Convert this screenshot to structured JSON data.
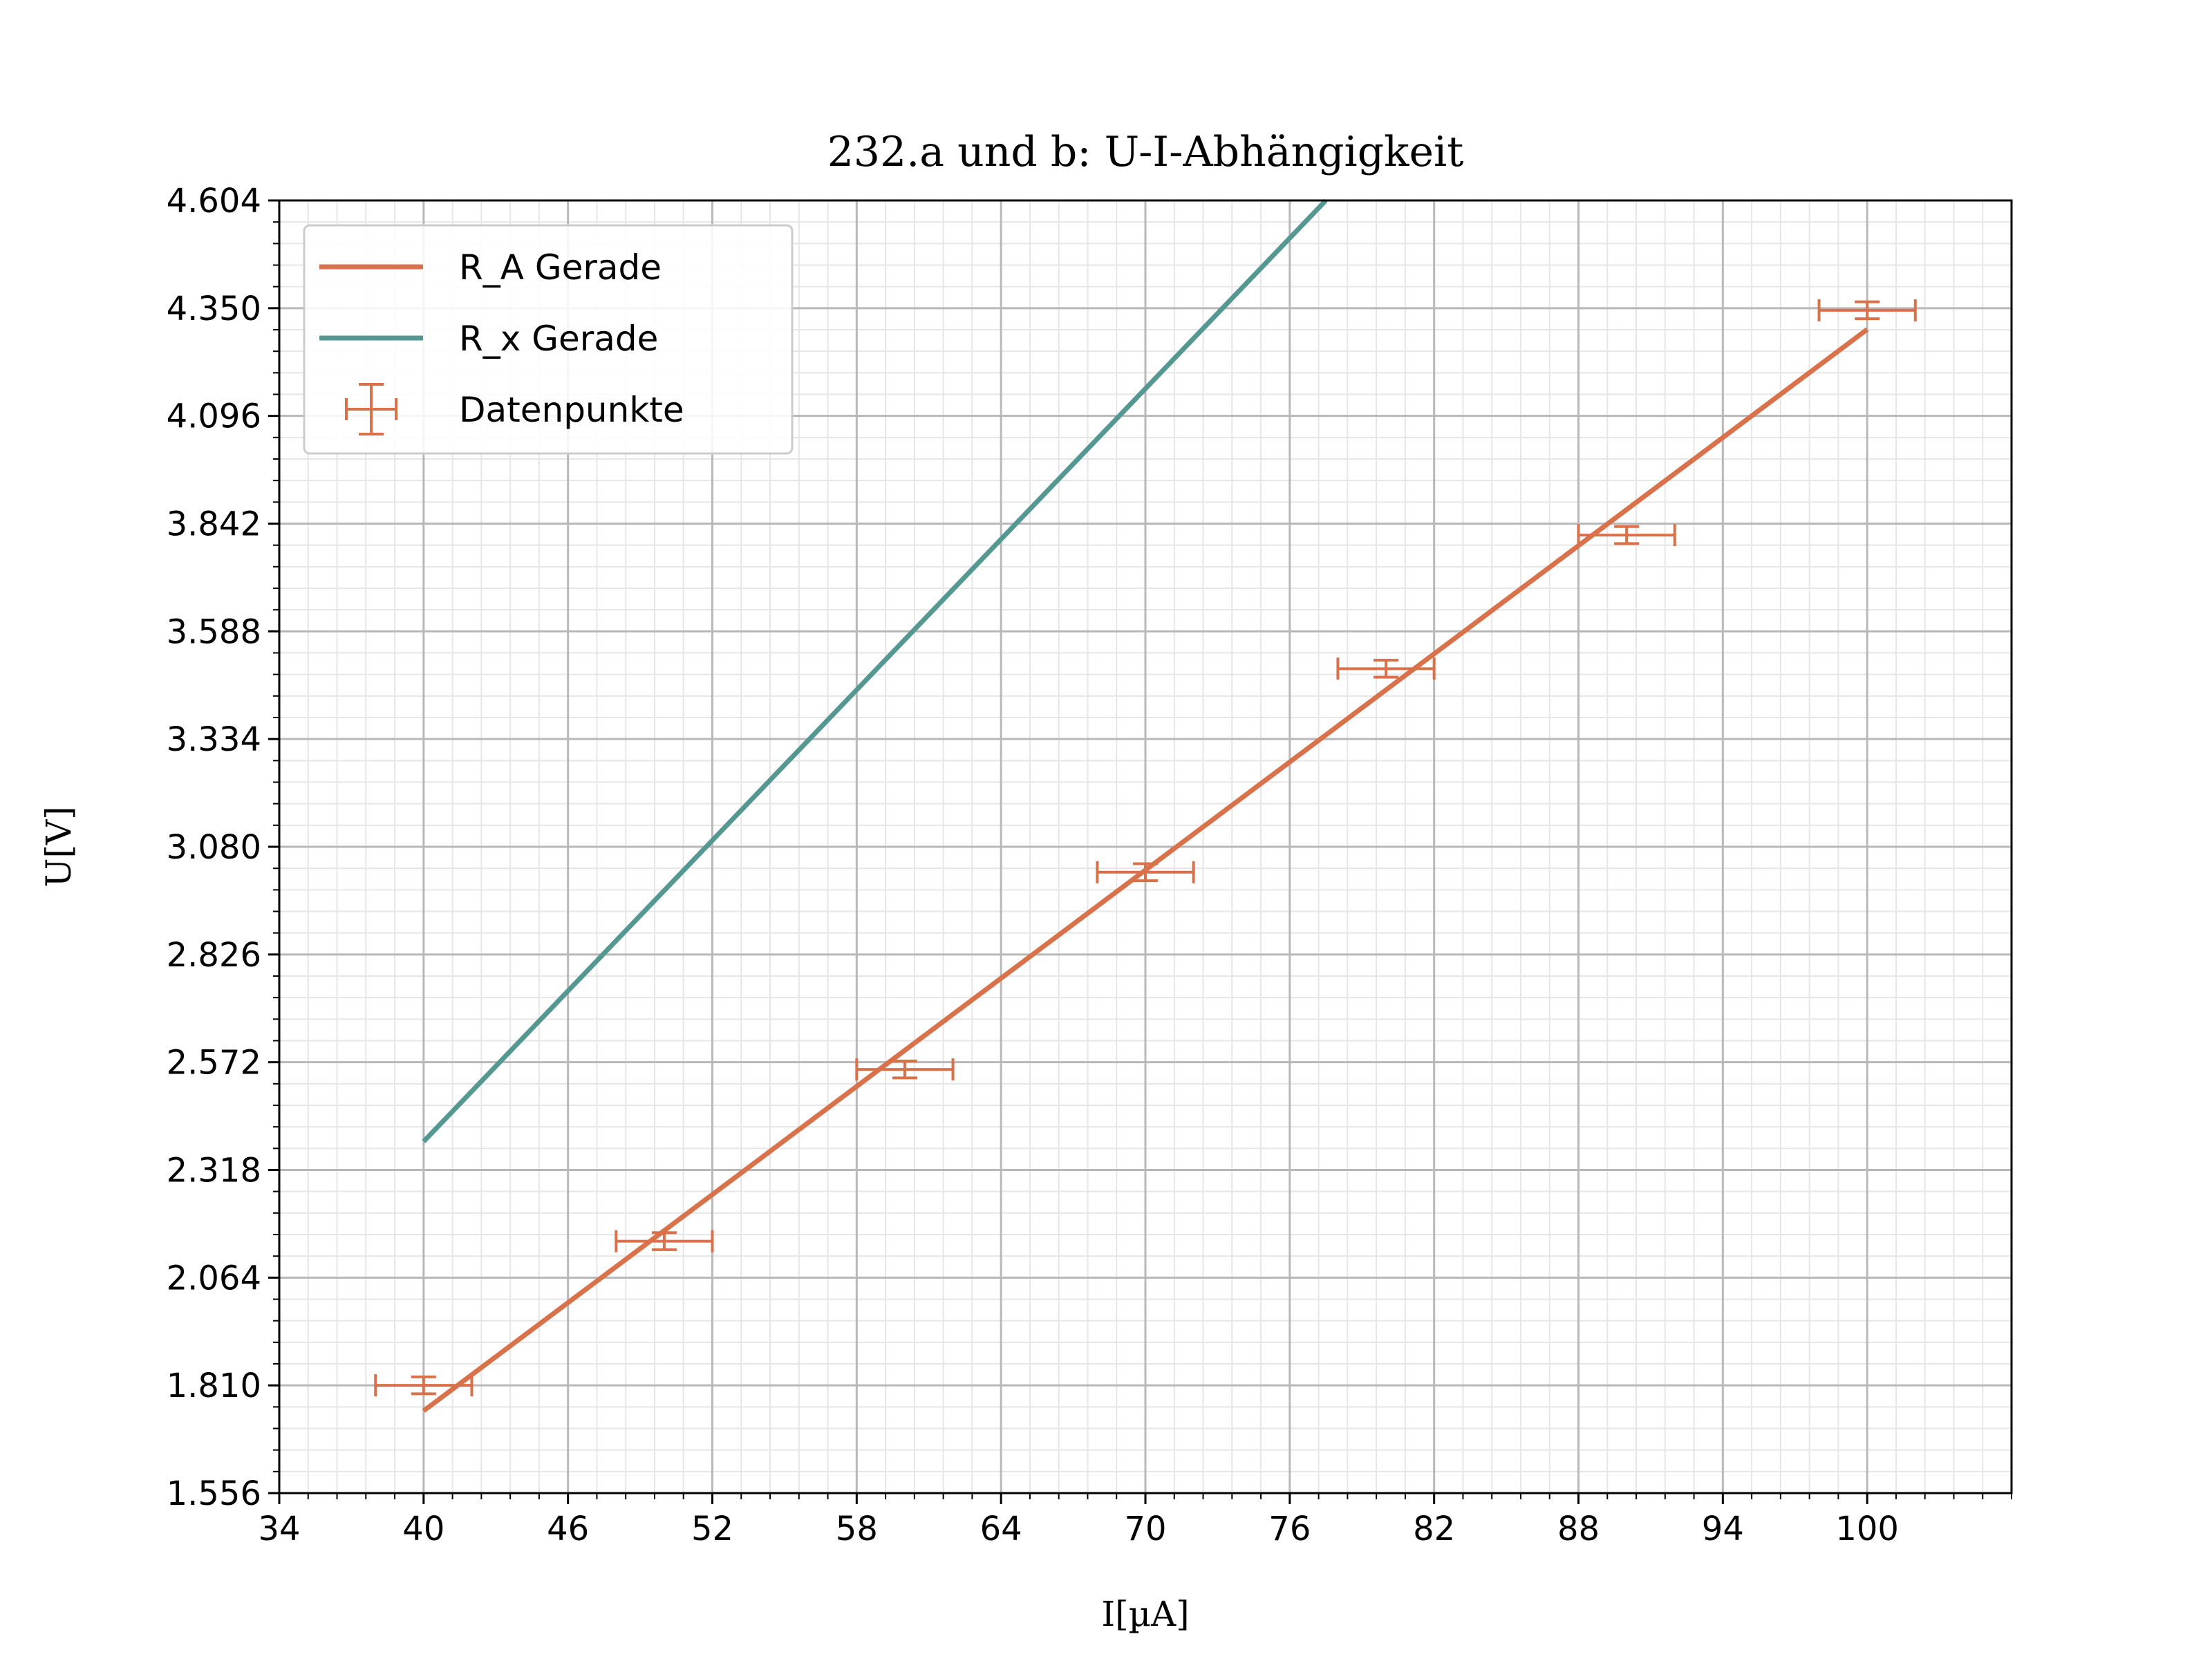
{
  "chart_data": {
    "type": "line",
    "title": "232.a und b: U-I-Abhängigkeit",
    "xlabel": "I[µA]",
    "ylabel": "U[V]",
    "xlim": [
      34,
      106
    ],
    "ylim": [
      1.556,
      4.604
    ],
    "xticks": [
      "34",
      "40",
      "46",
      "52",
      "58",
      "64",
      "70",
      "76",
      "82",
      "88",
      "94",
      "100"
    ],
    "yticks": [
      "1.556",
      "1.810",
      "2.064",
      "2.318",
      "2.572",
      "2.826",
      "3.080",
      "3.334",
      "3.588",
      "3.842",
      "4.096",
      "4.350",
      "4.604"
    ],
    "grid": true,
    "legend_position": "top-left",
    "colors": {
      "ra": "#d9714a",
      "rx": "#559892"
    },
    "series": [
      {
        "name": "R_A Gerade",
        "kind": "line",
        "color": "#d9714a",
        "x": [
          40,
          100
        ],
        "y": [
          1.75,
          4.3
        ]
      },
      {
        "name": "R_x Gerade",
        "kind": "line",
        "color": "#559892",
        "x": [
          40,
          77.5
        ],
        "y": [
          2.385,
          4.604
        ]
      },
      {
        "name": "Datenpunkte",
        "kind": "errorbar",
        "color": "#d9714a",
        "x": [
          40,
          50,
          60,
          70,
          80,
          90,
          100
        ],
        "y": [
          1.81,
          2.15,
          2.555,
          3.02,
          3.5,
          3.815,
          4.345
        ],
        "xerr": 2,
        "yerr": 0.02
      }
    ]
  }
}
